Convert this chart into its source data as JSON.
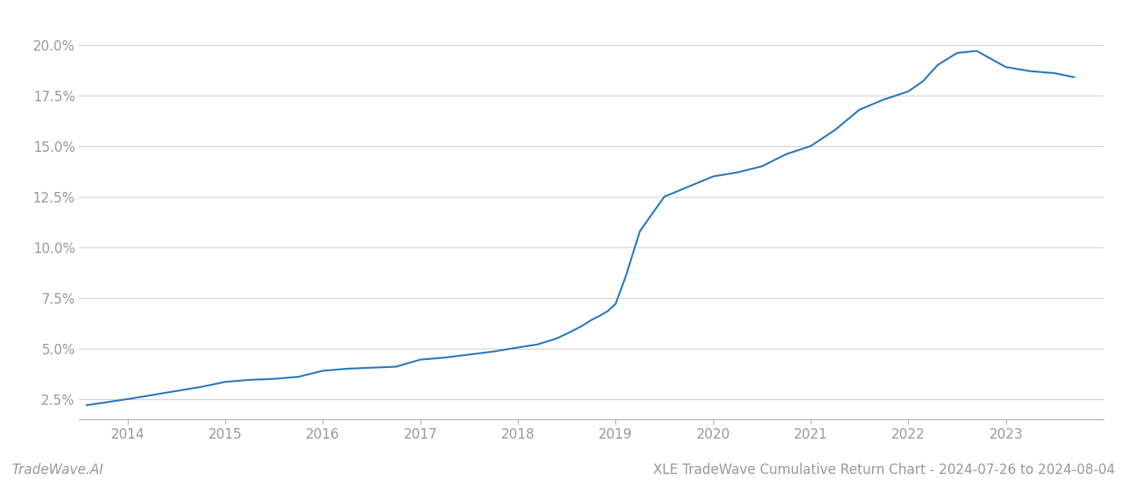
{
  "title": "XLE TradeWave Cumulative Return Chart - 2024-07-26 to 2024-08-04",
  "footer_left": "TradeWave.AI",
  "line_color": "#2878be",
  "line_width": 1.6,
  "background_color": "#ffffff",
  "grid_color": "#cccccc",
  "x_years": [
    2014,
    2015,
    2016,
    2017,
    2018,
    2019,
    2020,
    2021,
    2022,
    2023
  ],
  "x_values": [
    2013.58,
    2014.0,
    2014.25,
    2014.5,
    2014.75,
    2015.0,
    2015.25,
    2015.5,
    2015.75,
    2016.0,
    2016.25,
    2016.5,
    2016.75,
    2017.0,
    2017.25,
    2017.5,
    2017.75,
    2018.0,
    2018.2,
    2018.4,
    2018.55,
    2018.65,
    2018.75,
    2018.85,
    2018.92,
    2019.0,
    2019.1,
    2019.25,
    2019.5,
    2019.75,
    2020.0,
    2020.25,
    2020.5,
    2020.75,
    2021.0,
    2021.25,
    2021.5,
    2021.75,
    2022.0,
    2022.15,
    2022.3,
    2022.5,
    2022.7,
    2022.85,
    2023.0,
    2023.25,
    2023.5,
    2023.7
  ],
  "y_values": [
    2.2,
    2.5,
    2.7,
    2.9,
    3.1,
    3.35,
    3.45,
    3.5,
    3.6,
    3.9,
    4.0,
    4.05,
    4.1,
    4.45,
    4.55,
    4.7,
    4.85,
    5.05,
    5.2,
    5.5,
    5.85,
    6.1,
    6.4,
    6.65,
    6.85,
    7.2,
    8.5,
    10.8,
    12.5,
    13.0,
    13.5,
    13.7,
    14.0,
    14.6,
    15.0,
    15.8,
    16.8,
    17.3,
    17.7,
    18.2,
    19.0,
    19.6,
    19.7,
    19.3,
    18.9,
    18.7,
    18.6,
    18.4
  ],
  "yticks": [
    2.5,
    5.0,
    7.5,
    10.0,
    12.5,
    15.0,
    17.5,
    20.0
  ],
  "ylim": [
    1.5,
    21.5
  ],
  "xlim": [
    2013.5,
    2024.0
  ],
  "tick_label_color": "#999999",
  "tick_fontsize": 12,
  "title_fontsize": 12,
  "footer_fontsize": 12
}
